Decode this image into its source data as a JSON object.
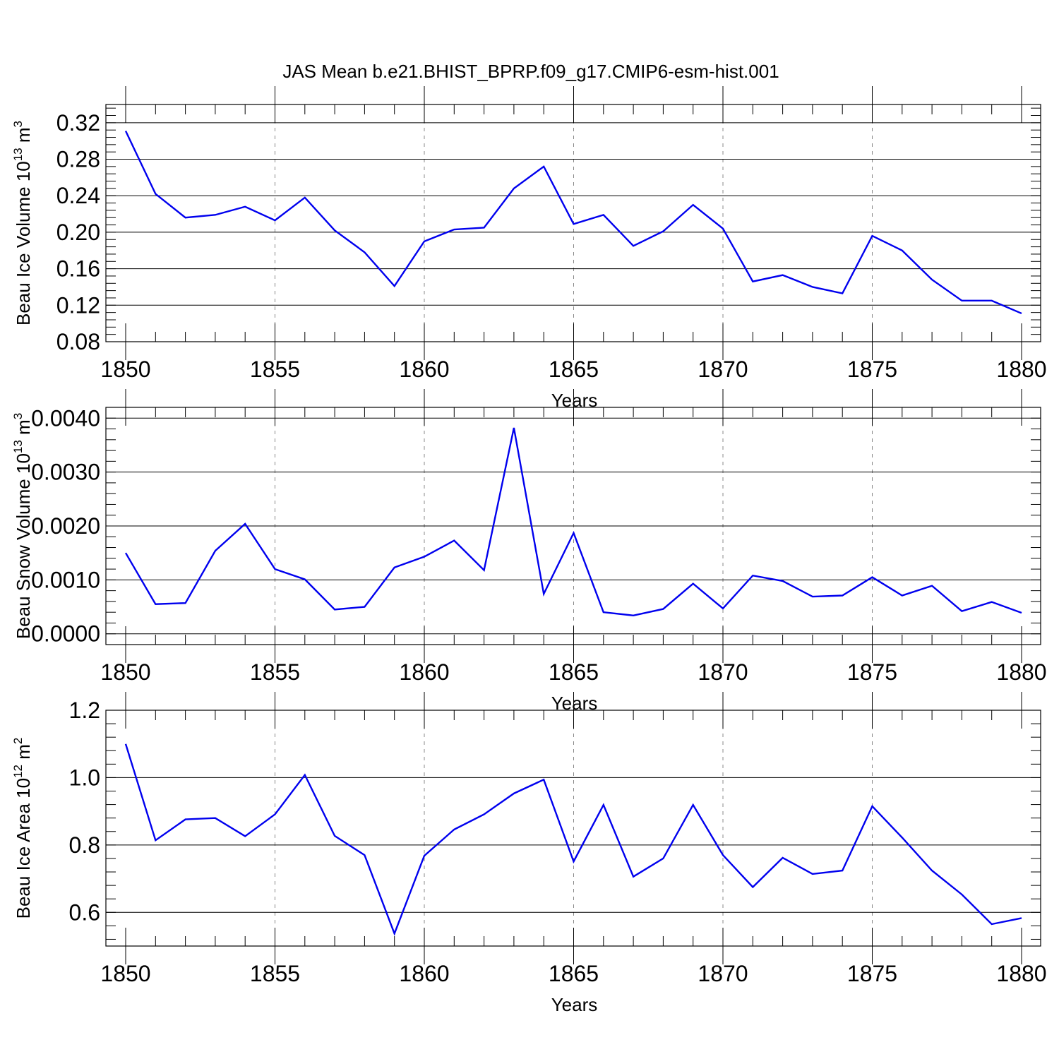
{
  "title": "JAS Mean b.e21.BHIST_BPRP.f09_g17.CMIP6-esm-hist.001",
  "colors": {
    "line": "#0000ee",
    "axis": "#000000",
    "grid": "#888888"
  },
  "chart_data": [
    {
      "type": "line",
      "ylabel_text": "Beau Ice Volume 10",
      "ylabel_exp": "13",
      "ylabel_unit": " m",
      "ylabel_unit_exp": "3",
      "xlabel": "Years",
      "xlim": [
        1850,
        1880
      ],
      "ylim": [
        0.08,
        0.34
      ],
      "yticks": [
        "0.08",
        "0.12",
        "0.16",
        "0.20",
        "0.24",
        "0.28",
        "0.32"
      ],
      "xticks": [
        "1850",
        "1855",
        "1860",
        "1865",
        "1870",
        "1875",
        "1880"
      ],
      "x": [
        1850,
        1851,
        1852,
        1853,
        1854,
        1855,
        1856,
        1857,
        1858,
        1859,
        1860,
        1861,
        1862,
        1863,
        1864,
        1865,
        1866,
        1867,
        1868,
        1869,
        1870,
        1871,
        1872,
        1873,
        1874,
        1875,
        1876,
        1877,
        1878,
        1879,
        1880
      ],
      "values": [
        0.311,
        0.242,
        0.216,
        0.219,
        0.228,
        0.213,
        0.238,
        0.202,
        0.178,
        0.141,
        0.19,
        0.203,
        0.205,
        0.248,
        0.272,
        0.209,
        0.219,
        0.185,
        0.201,
        0.23,
        0.204,
        0.146,
        0.153,
        0.14,
        0.133,
        0.196,
        0.18,
        0.148,
        0.125,
        0.125,
        0.111
      ]
    },
    {
      "type": "line",
      "ylabel_text": "Beau Snow Volume 10",
      "ylabel_exp": "13",
      "ylabel_unit": " m",
      "ylabel_unit_exp": "3",
      "xlabel": "Years",
      "xlim": [
        1850,
        1880
      ],
      "ylim": [
        -0.0002,
        0.0042
      ],
      "yticks": [
        "0.0000",
        "0.0010",
        "0.0020",
        "0.0030",
        "0.0040"
      ],
      "xticks": [
        "1850",
        "1855",
        "1860",
        "1865",
        "1870",
        "1875",
        "1880"
      ],
      "x": [
        1850,
        1851,
        1852,
        1853,
        1854,
        1855,
        1856,
        1857,
        1858,
        1859,
        1860,
        1861,
        1862,
        1863,
        1864,
        1865,
        1866,
        1867,
        1868,
        1869,
        1870,
        1871,
        1872,
        1873,
        1874,
        1875,
        1876,
        1877,
        1878,
        1879,
        1880
      ],
      "values": [
        0.0015,
        0.00055,
        0.00057,
        0.00154,
        0.00204,
        0.0012,
        0.00101,
        0.00045,
        0.0005,
        0.00123,
        0.00143,
        0.00173,
        0.00118,
        0.00382,
        0.00074,
        0.00187,
        0.0004,
        0.00034,
        0.00046,
        0.00093,
        0.00047,
        0.00108,
        0.00098,
        0.00069,
        0.00071,
        0.00105,
        0.00071,
        0.00089,
        0.00042,
        0.00059,
        0.00039
      ]
    },
    {
      "type": "line",
      "ylabel_text": "Beau Ice Area 10",
      "ylabel_exp": "12",
      "ylabel_unit": " m",
      "ylabel_unit_exp": "2",
      "xlabel": "Years",
      "xlim": [
        1850,
        1880
      ],
      "ylim": [
        0.5,
        1.2
      ],
      "yticks": [
        "0.6",
        "0.8",
        "1.0",
        "1.2"
      ],
      "xticks": [
        "1850",
        "1855",
        "1860",
        "1865",
        "1870",
        "1875",
        "1880"
      ],
      "x": [
        1850,
        1851,
        1852,
        1853,
        1854,
        1855,
        1856,
        1857,
        1858,
        1859,
        1860,
        1861,
        1862,
        1863,
        1864,
        1865,
        1866,
        1867,
        1868,
        1869,
        1870,
        1871,
        1872,
        1873,
        1874,
        1875,
        1876,
        1877,
        1878,
        1879,
        1880
      ],
      "values": [
        1.1,
        0.814,
        0.876,
        0.88,
        0.826,
        0.891,
        1.008,
        0.827,
        0.77,
        0.537,
        0.768,
        0.846,
        0.891,
        0.953,
        0.994,
        0.751,
        0.919,
        0.706,
        0.76,
        0.919,
        0.77,
        0.675,
        0.762,
        0.714,
        0.724,
        0.915,
        0.822,
        0.724,
        0.653,
        0.565,
        0.583
      ]
    }
  ]
}
